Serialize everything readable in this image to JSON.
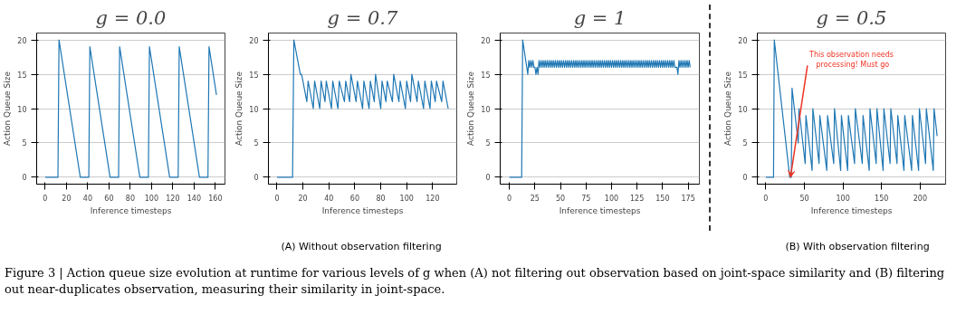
{
  "chart_data": [
    {
      "type": "line",
      "title": "g = 0.0",
      "xlabel": "Inference timesteps",
      "ylabel": "Action Queue Size",
      "xlim": [
        -8,
        169
      ],
      "ylim": [
        -1,
        21
      ],
      "xticks": [
        0,
        20,
        40,
        60,
        80,
        100,
        120,
        140,
        160
      ],
      "yticks": [
        0,
        5,
        10,
        15,
        20
      ],
      "grid": "y",
      "x": [
        0,
        12,
        13,
        33,
        41,
        42,
        61,
        69,
        70,
        89,
        97,
        98,
        117,
        125,
        126,
        145,
        153,
        154,
        161
      ],
      "series": [
        {
          "color": "#1f77b4",
          "values": [
            0,
            0,
            20,
            0,
            0,
            19,
            0,
            0,
            19,
            0,
            0,
            19,
            0,
            0,
            19,
            0,
            0,
            19,
            12
          ]
        }
      ]
    },
    {
      "type": "line",
      "title": "g = 0.7",
      "xlabel": "Inference timesteps",
      "ylabel": "Action Queue Size",
      "xlim": [
        -6.6,
        138.6
      ],
      "ylim": [
        -1,
        21
      ],
      "xticks": [
        0,
        20,
        40,
        60,
        80,
        100,
        120
      ],
      "yticks": [
        0,
        5,
        10,
        15,
        20
      ],
      "grid": "y",
      "annotations": [
        "(A) Without observation filtering"
      ],
      "x": [
        0,
        12,
        13,
        18,
        19,
        23,
        24,
        28,
        29,
        33,
        34,
        37,
        38,
        42,
        43,
        47,
        48,
        52,
        53,
        56,
        57,
        61,
        62,
        66,
        67,
        71,
        72,
        75,
        76,
        80,
        81,
        84,
        85,
        89,
        90,
        94,
        95,
        99,
        100,
        103,
        104,
        108,
        109,
        113,
        114,
        118,
        119,
        122,
        123,
        127,
        128,
        132
      ],
      "series": [
        {
          "color": "#1f77b4",
          "values": [
            0,
            0,
            20,
            15,
            15,
            11,
            14,
            10,
            14,
            10,
            14,
            11,
            14,
            10,
            14,
            10,
            14,
            11,
            14,
            11,
            15,
            11,
            14,
            10,
            14,
            10,
            14,
            11,
            15,
            10,
            14,
            11,
            14,
            11,
            15,
            11,
            14,
            10,
            14,
            11,
            15,
            11,
            14,
            10,
            14,
            10,
            14,
            11,
            14,
            11,
            14,
            10
          ]
        }
      ]
    },
    {
      "type": "line",
      "title": "g = 1",
      "xlabel": "Inference timesteps",
      "ylabel": "Action Queue Size",
      "xlim": [
        -9,
        186
      ],
      "ylim": [
        -1,
        21
      ],
      "xticks": [
        0,
        25,
        50,
        75,
        100,
        125,
        150,
        175
      ],
      "yticks": [
        0,
        5,
        10,
        15,
        20
      ],
      "grid": "y",
      "x": [
        0,
        12,
        13,
        14,
        15,
        16,
        17,
        18,
        19,
        20,
        21,
        22,
        23,
        24,
        25,
        26,
        27,
        28,
        29,
        30,
        31,
        32,
        33,
        34,
        35,
        36,
        37,
        38,
        39,
        40,
        41,
        42,
        43,
        44,
        45,
        46,
        47,
        48,
        49,
        50,
        51,
        52,
        53,
        54,
        55,
        56,
        57,
        58,
        59,
        60,
        61,
        62,
        63,
        64,
        65,
        66,
        67,
        68,
        69,
        70,
        71,
        72,
        73,
        74,
        75,
        76,
        77,
        78,
        79,
        80,
        81,
        82,
        83,
        84,
        85,
        86,
        87,
        88,
        89,
        90,
        91,
        92,
        93,
        94,
        95,
        96,
        97,
        98,
        99,
        100,
        101,
        102,
        103,
        104,
        105,
        106,
        107,
        108,
        109,
        110,
        111,
        112,
        113,
        114,
        115,
        116,
        117,
        118,
        119,
        120,
        121,
        122,
        123,
        124,
        125,
        126,
        127,
        128,
        129,
        130,
        131,
        132,
        133,
        134,
        135,
        136,
        137,
        138,
        139,
        140,
        141,
        142,
        143,
        144,
        145,
        146,
        147,
        148,
        149,
        150,
        151,
        152,
        153,
        154,
        155,
        156,
        157,
        158,
        159,
        160,
        161,
        162,
        163,
        164,
        165,
        166,
        167,
        168,
        169,
        170,
        171,
        172,
        173,
        174,
        175,
        176,
        177
      ],
      "series": [
        {
          "color": "#1f77b4",
          "values": [
            0,
            0,
            20,
            19,
            18,
            17,
            16,
            15,
            17,
            16,
            17,
            16,
            17,
            16,
            16,
            15,
            16,
            15,
            17,
            16,
            17,
            16,
            17,
            16,
            17,
            16,
            17,
            16,
            17,
            16,
            17,
            16,
            17,
            16,
            17,
            16,
            17,
            16,
            17,
            16,
            17,
            16,
            17,
            16,
            17,
            16,
            17,
            16,
            17,
            16,
            17,
            16,
            17,
            16,
            17,
            16,
            17,
            16,
            17,
            16,
            17,
            16,
            17,
            16,
            17,
            16,
            17,
            16,
            17,
            16,
            17,
            16,
            17,
            16,
            17,
            16,
            17,
            16,
            17,
            16,
            17,
            16,
            17,
            16,
            17,
            16,
            17,
            16,
            17,
            16,
            17,
            16,
            17,
            16,
            17,
            16,
            17,
            16,
            17,
            16,
            17,
            16,
            17,
            16,
            17,
            16,
            17,
            16,
            17,
            16,
            17,
            16,
            17,
            16,
            17,
            16,
            17,
            16,
            17,
            16,
            17,
            16,
            17,
            16,
            17,
            16,
            17,
            16,
            17,
            16,
            17,
            16,
            17,
            16,
            17,
            16,
            17,
            16,
            17,
            16,
            17,
            16,
            17,
            16,
            17,
            16,
            17,
            16,
            17,
            16,
            17,
            16,
            16,
            16,
            15,
            17,
            16,
            17,
            16,
            17,
            16,
            17,
            16,
            17,
            16,
            17,
            16
          ]
        }
      ]
    },
    {
      "type": "line",
      "title": "g = 0.5",
      "xlabel": "Inference timesteps",
      "ylabel": "Action Queue Size",
      "xlim": [
        -11,
        233
      ],
      "ylim": [
        -1,
        21
      ],
      "xticks": [
        0,
        50,
        100,
        150,
        200
      ],
      "yticks": [
        0,
        5,
        10,
        15,
        20
      ],
      "grid": "y",
      "annotations": [
        {
          "text": "This observation  needs\nprocessing! Must go",
          "x": 32,
          "y": 0
        },
        "(B) With observation filtering",
        "Figure 3 |  Action queue size evolution at runtime for various levels of g when (A) not filtering out observation based on joint-space similarity and (B) filtering out near-duplicates observation, measuring their similarity in joint-space."
      ],
      "x": [
        0,
        10,
        11,
        31,
        33,
        34,
        42,
        43,
        51,
        52,
        60,
        61,
        69,
        70,
        79,
        80,
        88,
        89,
        97,
        98,
        106,
        107,
        115,
        116,
        125,
        126,
        134,
        135,
        143,
        144,
        152,
        153,
        161,
        162,
        170,
        171,
        179,
        180,
        189,
        190,
        198,
        199,
        207,
        208,
        217,
        218,
        222
      ],
      "series": [
        {
          "color": "#1f77b4",
          "values": [
            0,
            0,
            20,
            0,
            0,
            13,
            5,
            10,
            2,
            9,
            1,
            10,
            2,
            9,
            1,
            9,
            2,
            10,
            1,
            9,
            1,
            9,
            2,
            10,
            2,
            9,
            1,
            10,
            2,
            10,
            1,
            10,
            2,
            10,
            2,
            9,
            1,
            9,
            1,
            9,
            1,
            10,
            2,
            10,
            1,
            10,
            6
          ]
        }
      ]
    }
  ]
}
